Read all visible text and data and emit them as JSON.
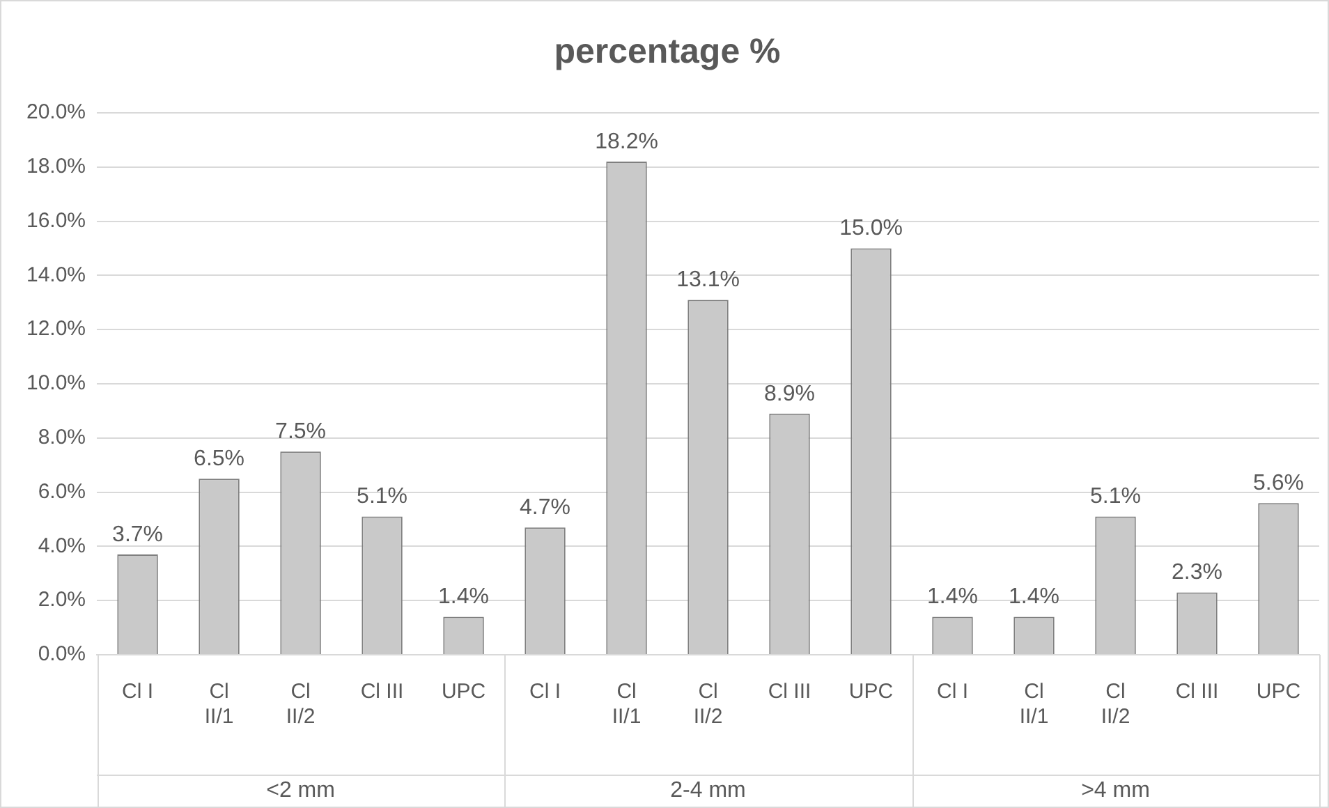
{
  "chart_data": {
    "type": "bar",
    "title": "percentage %",
    "categories": [
      "Cl I",
      "Cl II/1",
      "Cl II/2",
      "Cl III",
      "UPC",
      "Cl I",
      "Cl II/1",
      "Cl II/2",
      "Cl III",
      "UPC",
      "Cl I",
      "Cl II/1",
      "Cl II/2",
      "Cl III",
      "UPC"
    ],
    "values": [
      3.7,
      6.5,
      7.5,
      5.1,
      1.4,
      4.7,
      18.2,
      13.1,
      8.9,
      15.0,
      1.4,
      1.4,
      5.1,
      2.3,
      5.6
    ],
    "value_labels": [
      "3.7%",
      "6.5%",
      "7.5%",
      "5.1%",
      "1.4%",
      "4.7%",
      "18.2%",
      "13.1%",
      "8.9%",
      "15.0%",
      "1.4%",
      "1.4%",
      "5.1%",
      "2.3%",
      "5.6%"
    ],
    "color": "#c9c9c9",
    "ylim": [
      0,
      20
    ],
    "yticks": [
      {
        "value": 0,
        "label": "0.0%"
      },
      {
        "value": 2,
        "label": "2.0%"
      },
      {
        "value": 4,
        "label": "4.0%"
      },
      {
        "value": 6,
        "label": "6.0%"
      },
      {
        "value": 8,
        "label": "8.0%"
      },
      {
        "value": 10,
        "label": "10.0%"
      },
      {
        "value": 12,
        "label": "12.0%"
      },
      {
        "value": 14,
        "label": "14.0%"
      },
      {
        "value": 16,
        "label": "16.0%"
      },
      {
        "value": 18,
        "label": "18.0%"
      },
      {
        "value": 20,
        "label": "20.0%"
      }
    ],
    "grid": "y",
    "legend": false,
    "annotations": [
      "<2 mm",
      "2-4 mm",
      ">4 mm"
    ]
  }
}
